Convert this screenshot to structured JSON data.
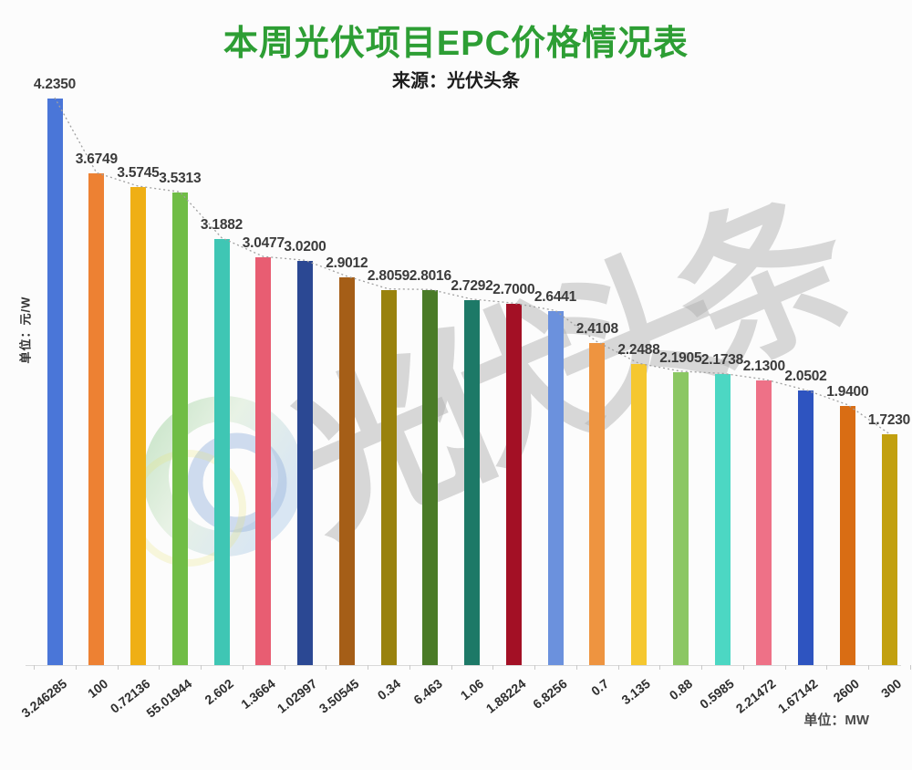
{
  "header": {
    "title": "本周光伏项目EPC价格情况表",
    "title_color": "#2d9e34",
    "subtitle": "来源：光伏头条"
  },
  "y_axis": {
    "unit_label": "单位：元/W"
  },
  "x_axis": {
    "unit_label": "单位：MW"
  },
  "watermark": {
    "text": "光伏头条",
    "logo_icon": "pv-headlines-logo",
    "text_color": "#b2b2b2"
  },
  "chart_data": {
    "type": "bar",
    "title": "本周光伏项目EPC价格情况表",
    "subtitle": "来源：光伏头条",
    "ylabel": "单位：元/W",
    "x_unit": "单位：MW",
    "categories": [
      "3.246285",
      "100",
      "0.72136",
      "55.01944",
      "2.602",
      "1.3664",
      "1.02997",
      "3.50545",
      "0.34",
      "6.463",
      "1.06",
      "1.88224",
      "6.8256",
      "0.7",
      "3.135",
      "0.88",
      "0.5985",
      "2.21472",
      "1.67142",
      "2600",
      "300"
    ],
    "values": [
      4.235,
      3.6749,
      3.5745,
      3.5313,
      3.1882,
      3.0477,
      3.02,
      2.9012,
      2.8059,
      2.8016,
      2.7292,
      2.7,
      2.6441,
      2.4108,
      2.2488,
      2.1905,
      2.1738,
      2.13,
      2.0502,
      1.94,
      1.723
    ],
    "value_labels": [
      "4.2350",
      "3.6749",
      "3.5745",
      "3.5313",
      "3.1882",
      "3.0477",
      "3.0200",
      "2.9012",
      "2.8059",
      "2.8016",
      "2.7292",
      "2.7000",
      "2.6441",
      "2.4108",
      "2.2488",
      "2.1905",
      "2.1738",
      "2.1300",
      "2.0502",
      "1.9400",
      "1.7230"
    ],
    "bar_colors": [
      "#4A76D8",
      "#ED8133",
      "#EFAF15",
      "#70BD46",
      "#3FC6B4",
      "#E85D72",
      "#2B4893",
      "#A55E17",
      "#99820D",
      "#4A7B27",
      "#1D7967",
      "#A31025",
      "#6B91DD",
      "#EE9440",
      "#F5C72F",
      "#8BC763",
      "#4CD7C3",
      "#EE7187",
      "#2E54C0",
      "#D96D14",
      "#C2A00F"
    ],
    "trendline": {
      "style": "dotted",
      "color": "#a0a0a0"
    },
    "ylim": [
      0,
      4.5
    ],
    "grid": false,
    "legend": null
  }
}
